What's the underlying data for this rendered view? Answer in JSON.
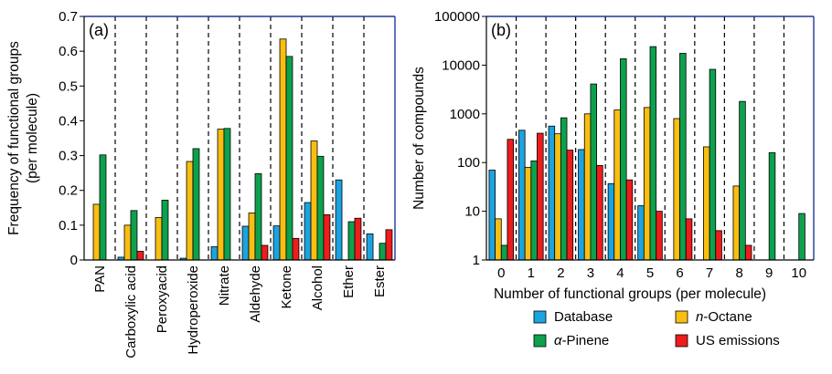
{
  "chart_data": [
    {
      "panel_label": "(a)",
      "type": "bar",
      "categories": [
        "PAN",
        "Carboxylic acid",
        "Peroxyacid",
        "Hydroperoxide",
        "Nitrate",
        "Aldehyde",
        "Ketone",
        "Alcohol",
        "Ether",
        "Ester"
      ],
      "series": [
        {
          "name": "Database",
          "color": "#1CA3E0",
          "values": [
            0,
            0.008,
            0,
            0.005,
            0.038,
            0.097,
            0.098,
            0.165,
            0.23,
            0.075
          ]
        },
        {
          "name": "n-Octane",
          "color": "#F9BE12",
          "values": [
            0.16,
            0.1,
            0.122,
            0.283,
            0.376,
            0.135,
            0.635,
            0.342,
            0,
            0
          ]
        },
        {
          "name": "α-Pinene",
          "color": "#0DA14D",
          "values": [
            0.302,
            0.142,
            0.172,
            0.32,
            0.378,
            0.248,
            0.585,
            0.298,
            0.11,
            0.048
          ]
        },
        {
          "name": "US emissions",
          "color": "#EE1C1C",
          "values": [
            0,
            0.025,
            0,
            0,
            0,
            0.042,
            0.062,
            0.13,
            0.12,
            0.087
          ]
        }
      ],
      "ylabel_line1": "Frequency of functional groups",
      "ylabel_line2": "(per molecule)",
      "xlabel": "",
      "ylim": [
        0,
        0.7
      ],
      "yticks": [
        0,
        0.1,
        0.2,
        0.3,
        0.4,
        0.5,
        0.6,
        0.7
      ],
      "ytick_labels": [
        "0",
        "0.1",
        "0.2",
        "0.3",
        "0.4",
        "0.5",
        "0.6",
        "0.7"
      ],
      "grid": false,
      "category_separators": "dashed"
    },
    {
      "panel_label": "(b)",
      "type": "bar",
      "y_scale": "log",
      "categories": [
        "0",
        "1",
        "2",
        "3",
        "4",
        "5",
        "6",
        "7",
        "8",
        "9",
        "10"
      ],
      "series": [
        {
          "name": "Database",
          "color": "#1CA3E0",
          "values": [
            70,
            460,
            560,
            185,
            37,
            13,
            0,
            0,
            0,
            0,
            0
          ]
        },
        {
          "name": "n-Octane",
          "color": "#F9BE12",
          "values": [
            7,
            80,
            390,
            1000,
            1200,
            1350,
            800,
            210,
            33,
            0,
            0
          ]
        },
        {
          "name": "α-Pinene",
          "color": "#0DA14D",
          "values": [
            2,
            108,
            830,
            4100,
            13500,
            24000,
            17500,
            8200,
            1800,
            160,
            9
          ]
        },
        {
          "name": "US emissions",
          "color": "#EE1C1C",
          "values": [
            300,
            400,
            180,
            87,
            44,
            10,
            7,
            4,
            2,
            0,
            0
          ]
        }
      ],
      "ylabel": "Number of compounds",
      "xlabel": "Number of functional groups (per molecule)",
      "ylim": [
        1,
        100000
      ],
      "yticks": [
        1,
        10,
        100,
        1000,
        10000,
        100000
      ],
      "ytick_labels": [
        "1",
        "10",
        "100",
        "1000",
        "10000",
        "100000"
      ],
      "grid": false,
      "category_separators": "dashed"
    }
  ],
  "legend": {
    "placement": "bottom-right",
    "items": [
      {
        "label": "Database",
        "color": "#1CA3E0",
        "italic_prefix": ""
      },
      {
        "label": "-Octane",
        "color": "#F9BE12",
        "italic_prefix": "n"
      },
      {
        "label": "-Pinene",
        "color": "#0DA14D",
        "italic_prefix": "α"
      },
      {
        "label": "US emissions",
        "color": "#EE1C1C",
        "italic_prefix": ""
      }
    ]
  }
}
